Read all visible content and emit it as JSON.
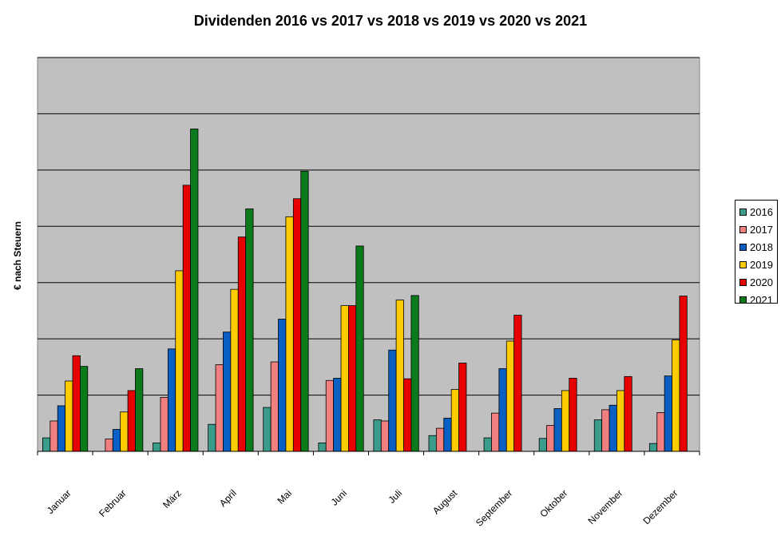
{
  "chart_data": {
    "type": "bar",
    "title": "Dividenden 2016 vs 2017 vs 2018 vs 2019 vs 2020 vs 2021",
    "xlabel": "",
    "ylabel": "€ nach Steuern",
    "ylim": [
      0,
      7
    ],
    "grid": true,
    "legend_position": "right",
    "categories": [
      "Januar",
      "Februar",
      "März",
      "April",
      "Mai",
      "Juni",
      "Juli",
      "August",
      "September",
      "Oktober",
      "November",
      "Dezember"
    ],
    "series": [
      {
        "name": "2016",
        "color": "#3c9c8c",
        "values": [
          0.24,
          0,
          0.15,
          0.48,
          0.78,
          0.15,
          0.56,
          0.28,
          0.24,
          0.23,
          0.56,
          0.14
        ]
      },
      {
        "name": "2017",
        "color": "#f08080",
        "values": [
          0.54,
          0.22,
          0.96,
          1.54,
          1.59,
          1.26,
          0.54,
          0.41,
          0.68,
          0.46,
          0.74,
          0.69
        ]
      },
      {
        "name": "2018",
        "color": "#0a5fc4",
        "values": [
          0.81,
          0.39,
          1.82,
          2.12,
          2.35,
          1.3,
          1.8,
          0.59,
          1.47,
          0.76,
          0.82,
          1.34
        ]
      },
      {
        "name": "2019",
        "color": "#ffcc00",
        "values": [
          1.25,
          0.7,
          3.21,
          2.88,
          4.17,
          2.59,
          2.69,
          1.1,
          1.96,
          1.08,
          1.08,
          1.98
        ]
      },
      {
        "name": "2020",
        "color": "#e60000",
        "values": [
          1.7,
          1.08,
          4.73,
          3.81,
          4.49,
          2.59,
          1.29,
          1.57,
          2.42,
          1.3,
          1.33,
          2.76
        ]
      },
      {
        "name": "2021",
        "color": "#0a7a1a",
        "values": [
          1.51,
          1.47,
          5.73,
          4.31,
          4.98,
          3.65,
          2.77,
          0,
          0,
          0,
          0,
          0
        ]
      }
    ]
  },
  "colors": {
    "plot_background": "#c0c0c0",
    "gridline": "#000000"
  }
}
